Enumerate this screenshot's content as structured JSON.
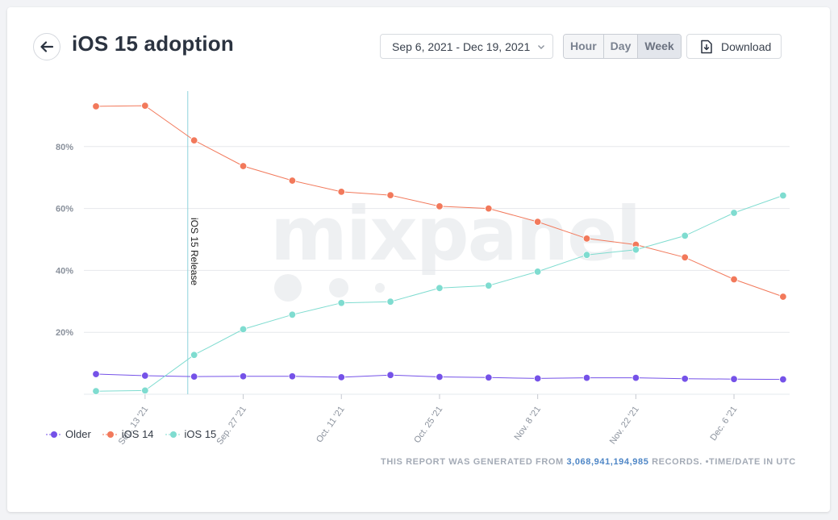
{
  "title": "iOS 15 adoption",
  "date_range": "Sep 6, 2021 - Dec 19, 2021",
  "granularity": {
    "options": [
      "Hour",
      "Day",
      "Week"
    ],
    "selected": "Week"
  },
  "download_label": "Download",
  "watermark": "mixpanel",
  "footer": {
    "prefix": "THIS REPORT WAS GENERATED FROM",
    "records": "3,068,941,194,985",
    "suffix": "RECORDS. •TIME/DATE IN UTC"
  },
  "colors": {
    "older": "#7552e8",
    "ios14": "#f2795b",
    "ios15": "#7fdcd0",
    "release_line": "#8fd3dc"
  },
  "chart_data": {
    "type": "line",
    "title": "iOS 15 adoption",
    "x_start_index": 0,
    "x": [
      "Sep. 6 '21",
      "Sep. 13 '21",
      "Sep. 20 '21",
      "Sep. 27 '21",
      "Oct. 4 '21",
      "Oct. 11 '21",
      "Oct. 18 '21",
      "Oct. 25 '21",
      "Nov. 1 '21",
      "Nov. 8 '21",
      "Nov. 15 '21",
      "Nov. 22 '21",
      "Nov. 29 '21",
      "Dec. 6 '21",
      "Dec. 13 '21"
    ],
    "x_tick_labels": [
      "Sep. 13 '21",
      "Sep. 27 '21",
      "Oct. 11 '21",
      "Oct. 25 '21",
      "Nov. 8 '21",
      "Nov. 22 '21",
      "Dec. 6 '21"
    ],
    "y_tick_labels": [
      "20%",
      "40%",
      "60%",
      "80%"
    ],
    "ylim": [
      0,
      100
    ],
    "y_ticks": [
      20,
      40,
      60,
      80
    ],
    "grid": true,
    "legend_position": "bottom-left",
    "series": [
      {
        "name": "Older",
        "values": [
          6.5,
          6.0,
          5.7,
          5.8,
          5.8,
          5.5,
          6.2,
          5.6,
          5.4,
          5.1,
          5.3,
          5.3,
          5.0,
          4.9,
          4.8
        ]
      },
      {
        "name": "iOS 14",
        "values": [
          93,
          93.2,
          82,
          73.7,
          69,
          65.4,
          64.3,
          60.7,
          60.0,
          55.7,
          50.3,
          48.3,
          44.2,
          37.1,
          31.5
        ]
      },
      {
        "name": "iOS 15",
        "values": [
          1.0,
          1.2,
          12.7,
          21.0,
          25.7,
          29.5,
          29.9,
          34.3,
          35.1,
          39.6,
          45.0,
          46.7,
          51.2,
          58.6,
          64.2
        ]
      }
    ],
    "annotations": [
      {
        "text": "iOS 15 Release",
        "x_value": 1.87
      }
    ]
  }
}
